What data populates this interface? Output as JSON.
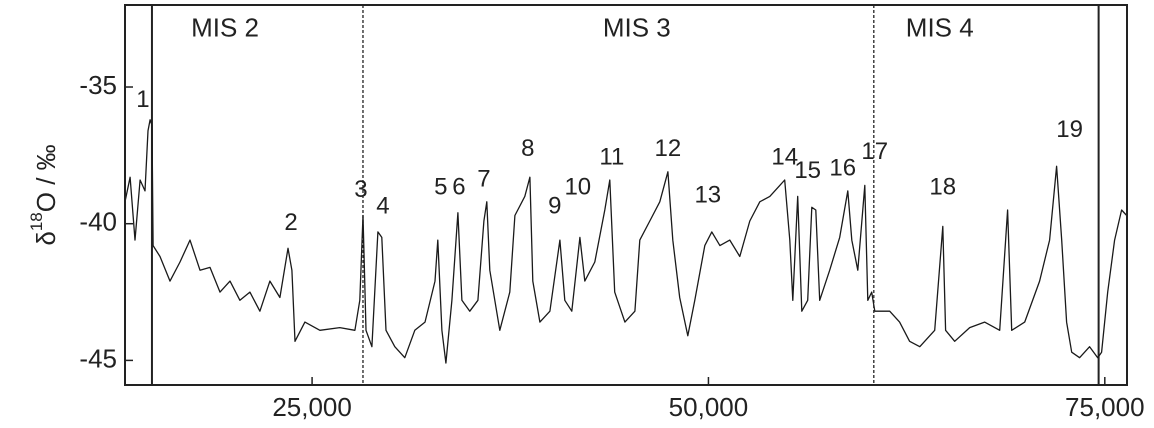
{
  "chart_data": {
    "type": "line",
    "y_label": {
      "symbol": "δ",
      "sup": "18",
      "rest": "O / ‰"
    },
    "color": "#1a1a1a",
    "xlim": [
      13200,
      76400
    ],
    "ylim": [
      -45.9,
      -32
    ],
    "xticks": [
      {
        "value": 25000,
        "label": "25,000"
      },
      {
        "value": 50000,
        "label": "50,000"
      },
      {
        "value": 75000,
        "label": "75,000"
      }
    ],
    "yticks": [
      -35,
      -40,
      -45
    ],
    "x": [
      13200,
      13520,
      13830,
      14150,
      14460,
      14650,
      14780,
      14900,
      14970,
      15410,
      16040,
      16670,
      17300,
      17930,
      18560,
      19190,
      19820,
      20450,
      21080,
      21710,
      22340,
      22970,
      23480,
      23730,
      23920,
      24550,
      25490,
      26750,
      27700,
      28010,
      28210,
      28400,
      28770,
      29150,
      29400,
      29660,
      30220,
      30850,
      31480,
      32120,
      32750,
      32930,
      33190,
      33440,
      33820,
      34200,
      34450,
      34950,
      35460,
      35840,
      36020,
      36210,
      36840,
      37470,
      37790,
      38420,
      38740,
      38920,
      39370,
      40000,
      40630,
      40940,
      41380,
      41890,
      42200,
      42830,
      43460,
      43780,
      44090,
      44730,
      45360,
      45670,
      46300,
      46930,
      47440,
      47750,
      48190,
      48700,
      49140,
      49770,
      50210,
      50720,
      51350,
      51980,
      52610,
      53240,
      53870,
      54500,
      54810,
      55130,
      55320,
      55630,
      55890,
      56260,
      56520,
      56770,
      57020,
      57650,
      58280,
      58790,
      59040,
      59420,
      59860,
      60050,
      60300,
      60490,
      61430,
      62060,
      62690,
      63330,
      64270,
      64780,
      64960,
      65530,
      66480,
      67420,
      68370,
      68870,
      69130,
      69950,
      70890,
      71520,
      71960,
      72280,
      72590,
      72910,
      73410,
      74040,
      74550,
      74800,
      75180,
      75620,
      76060,
      76380
    ],
    "values": [
      -39.2,
      -38.3,
      -40.6,
      -38.4,
      -38.8,
      -36.6,
      -36.2,
      -36.4,
      -40.8,
      -41.2,
      -42.1,
      -41.4,
      -40.6,
      -41.7,
      -41.6,
      -42.5,
      -42.1,
      -42.8,
      -42.5,
      -43.2,
      -42.1,
      -42.7,
      -40.9,
      -41.7,
      -44.3,
      -43.6,
      -43.9,
      -43.8,
      -43.9,
      -42.8,
      -39.7,
      -43.9,
      -44.5,
      -40.3,
      -40.5,
      -43.9,
      -44.5,
      -44.9,
      -43.9,
      -43.6,
      -42.1,
      -40.6,
      -43.9,
      -45.1,
      -42.8,
      -39.6,
      -42.8,
      -43.2,
      -42.8,
      -39.9,
      -39.2,
      -41.7,
      -43.9,
      -42.5,
      -39.7,
      -39.0,
      -38.3,
      -42.1,
      -43.6,
      -43.2,
      -40.6,
      -42.8,
      -43.2,
      -40.5,
      -42.1,
      -41.4,
      -39.5,
      -38.4,
      -42.5,
      -43.6,
      -43.2,
      -40.6,
      -39.9,
      -39.2,
      -38.1,
      -40.6,
      -42.7,
      -44.1,
      -42.8,
      -40.8,
      -40.3,
      -40.8,
      -40.6,
      -41.2,
      -39.9,
      -39.2,
      -39.0,
      -38.6,
      -38.4,
      -40.6,
      -42.8,
      -39.0,
      -43.2,
      -42.8,
      -39.4,
      -39.5,
      -42.8,
      -41.7,
      -40.5,
      -38.8,
      -40.6,
      -41.7,
      -38.6,
      -42.8,
      -42.5,
      -43.2,
      -43.2,
      -43.6,
      -44.3,
      -44.5,
      -43.9,
      -40.1,
      -43.9,
      -44.3,
      -43.8,
      -43.6,
      -43.9,
      -39.5,
      -43.9,
      -43.6,
      -42.1,
      -40.6,
      -37.9,
      -40.6,
      -43.6,
      -44.7,
      -44.9,
      -44.5,
      -44.9,
      -44.7,
      -42.5,
      -40.6,
      -39.5,
      -39.7
    ],
    "boundaries": [
      {
        "x": 14900,
        "style": "solid"
      },
      {
        "x": 28210,
        "style": "dashed"
      },
      {
        "x": 60430,
        "style": "dashed"
      },
      {
        "x": 74610,
        "style": "solid"
      }
    ],
    "stages": [
      {
        "text": "MIS 2",
        "x": 19510,
        "y": -32.9
      },
      {
        "text": "MIS 3",
        "x": 45480,
        "y": -32.9
      },
      {
        "text": "MIS 4",
        "x": 64590,
        "y": -32.9
      }
    ],
    "annotations": [
      {
        "text": "1",
        "x": 14330,
        "y": -35.5
      },
      {
        "text": "2",
        "x": 23670,
        "y": -40.0
      },
      {
        "text": "3",
        "x": 28080,
        "y": -38.8
      },
      {
        "text": "4",
        "x": 29470,
        "y": -39.4
      },
      {
        "text": "5",
        "x": 33120,
        "y": -38.7
      },
      {
        "text": "6",
        "x": 34260,
        "y": -38.7
      },
      {
        "text": "7",
        "x": 35840,
        "y": -38.4
      },
      {
        "text": "8",
        "x": 38610,
        "y": -37.3
      },
      {
        "text": "9",
        "x": 40310,
        "y": -39.4
      },
      {
        "text": "10",
        "x": 41760,
        "y": -38.7
      },
      {
        "text": "11",
        "x": 43910,
        "y": -37.6
      },
      {
        "text": "12",
        "x": 47440,
        "y": -37.3
      },
      {
        "text": "13",
        "x": 49960,
        "y": -39.0
      },
      {
        "text": "14",
        "x": 54810,
        "y": -37.6
      },
      {
        "text": "15",
        "x": 56260,
        "y": -38.1
      },
      {
        "text": "16",
        "x": 58470,
        "y": -38.0
      },
      {
        "text": "17",
        "x": 60490,
        "y": -37.4
      },
      {
        "text": "18",
        "x": 64780,
        "y": -38.7
      },
      {
        "text": "19",
        "x": 72780,
        "y": -36.6
      }
    ]
  }
}
